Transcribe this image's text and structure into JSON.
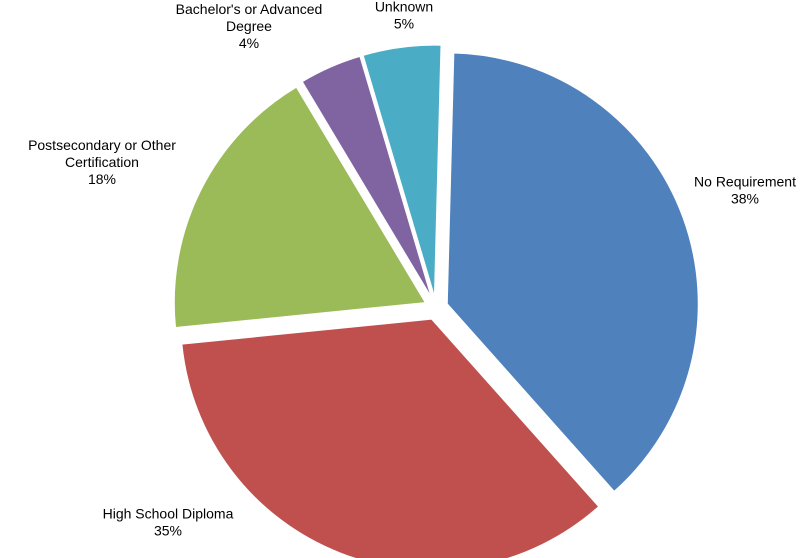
{
  "chart_data": {
    "type": "pie",
    "title": "",
    "legend": "none",
    "slices": [
      {
        "label_lines": [
          "No Requirement"
        ],
        "pct_label": "38%",
        "value": 38,
        "color": "#4F81BD"
      },
      {
        "label_lines": [
          "High School Diploma"
        ],
        "pct_label": "35%",
        "value": 35,
        "color": "#C0504D"
      },
      {
        "label_lines": [
          "Postsecondary or Other",
          "Certification"
        ],
        "pct_label": "18%",
        "value": 18,
        "color": "#9BBB59"
      },
      {
        "label_lines": [
          "Bachelor's or Advanced",
          "Degree"
        ],
        "pct_label": "4%",
        "value": 4,
        "color": "#8064A2"
      },
      {
        "label_lines": [
          "Unknown"
        ],
        "pct_label": "5%",
        "value": 5,
        "color": "#4BACC6"
      }
    ]
  }
}
